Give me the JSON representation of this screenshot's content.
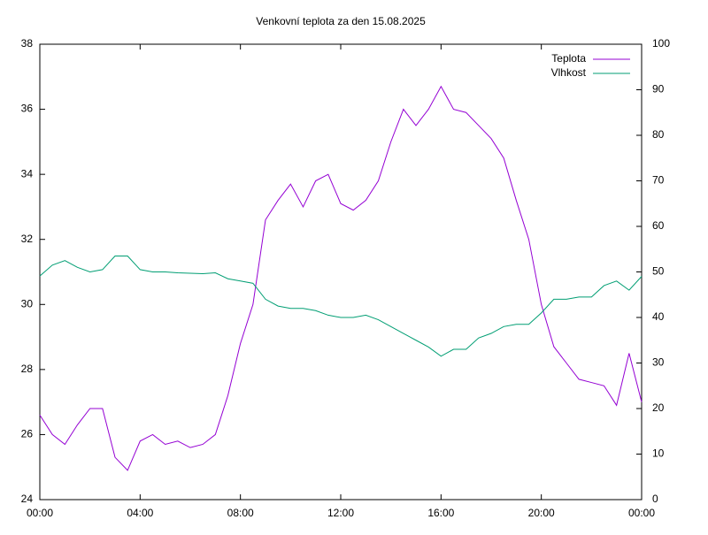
{
  "chart_data": {
    "type": "line",
    "title": "Venkovní teplota za den 15.08.2025",
    "x": [
      0,
      0.5,
      1,
      1.5,
      2,
      2.5,
      3,
      3.5,
      4,
      4.5,
      5,
      5.5,
      6,
      6.5,
      7,
      7.5,
      8,
      8.5,
      9,
      9.5,
      10,
      10.5,
      11,
      11.5,
      12,
      12.5,
      13,
      13.5,
      14,
      14.5,
      15,
      15.5,
      16,
      16.5,
      17,
      17.5,
      18,
      18.5,
      19,
      19.5,
      20,
      20.5,
      21,
      21.5,
      22,
      22.5,
      23,
      23.5,
      24
    ],
    "series": [
      {
        "name": "Teplota",
        "color": "#9400d3",
        "axis": "y",
        "values": [
          26.6,
          26.0,
          25.7,
          26.3,
          26.8,
          26.8,
          25.3,
          24.9,
          25.8,
          26.0,
          25.7,
          25.8,
          25.6,
          25.7,
          26.0,
          27.2,
          28.8,
          30.0,
          32.6,
          33.2,
          33.7,
          33.0,
          33.8,
          34.0,
          33.1,
          32.9,
          33.2,
          33.8,
          35.0,
          36.0,
          35.5,
          36.0,
          36.7,
          36.0,
          35.9,
          35.5,
          35.1,
          34.5,
          33.2,
          32.0,
          30.0,
          28.7,
          28.2,
          27.7,
          27.6,
          27.5,
          26.9,
          28.5,
          27.0
        ]
      },
      {
        "name": "Vlhkost",
        "color": "#009e73",
        "axis": "y2",
        "values": [
          49.1,
          51.5,
          52.5,
          51,
          50,
          50.5,
          53.5,
          53.5,
          50.5,
          50,
          50,
          49.8,
          49.7,
          49.6,
          49.8,
          48.5,
          48,
          47.5,
          44,
          42.5,
          42,
          42,
          41.5,
          40.5,
          40,
          40,
          40.5,
          39.5,
          38,
          36.5,
          35,
          33.5,
          31.5,
          33,
          33,
          35.5,
          36.5,
          38,
          38.5,
          38.5,
          41,
          44,
          44,
          44.5,
          44.5,
          47,
          48,
          46,
          49
        ]
      }
    ],
    "xlim": [
      0,
      24
    ],
    "xticks": [
      {
        "value": 0,
        "label": "00:00"
      },
      {
        "value": 4,
        "label": "04:00"
      },
      {
        "value": 8,
        "label": "08:00"
      },
      {
        "value": 12,
        "label": "12:00"
      },
      {
        "value": 16,
        "label": "16:00"
      },
      {
        "value": 20,
        "label": "20:00"
      },
      {
        "value": 24,
        "label": "00:00"
      }
    ],
    "ylim": [
      24,
      38
    ],
    "yticks": [
      24,
      26,
      28,
      30,
      32,
      34,
      36,
      38
    ],
    "y2lim": [
      0,
      100
    ],
    "y2ticks": [
      0,
      10,
      20,
      30,
      40,
      50,
      60,
      70,
      80,
      90,
      100
    ],
    "legend": "top-right"
  }
}
